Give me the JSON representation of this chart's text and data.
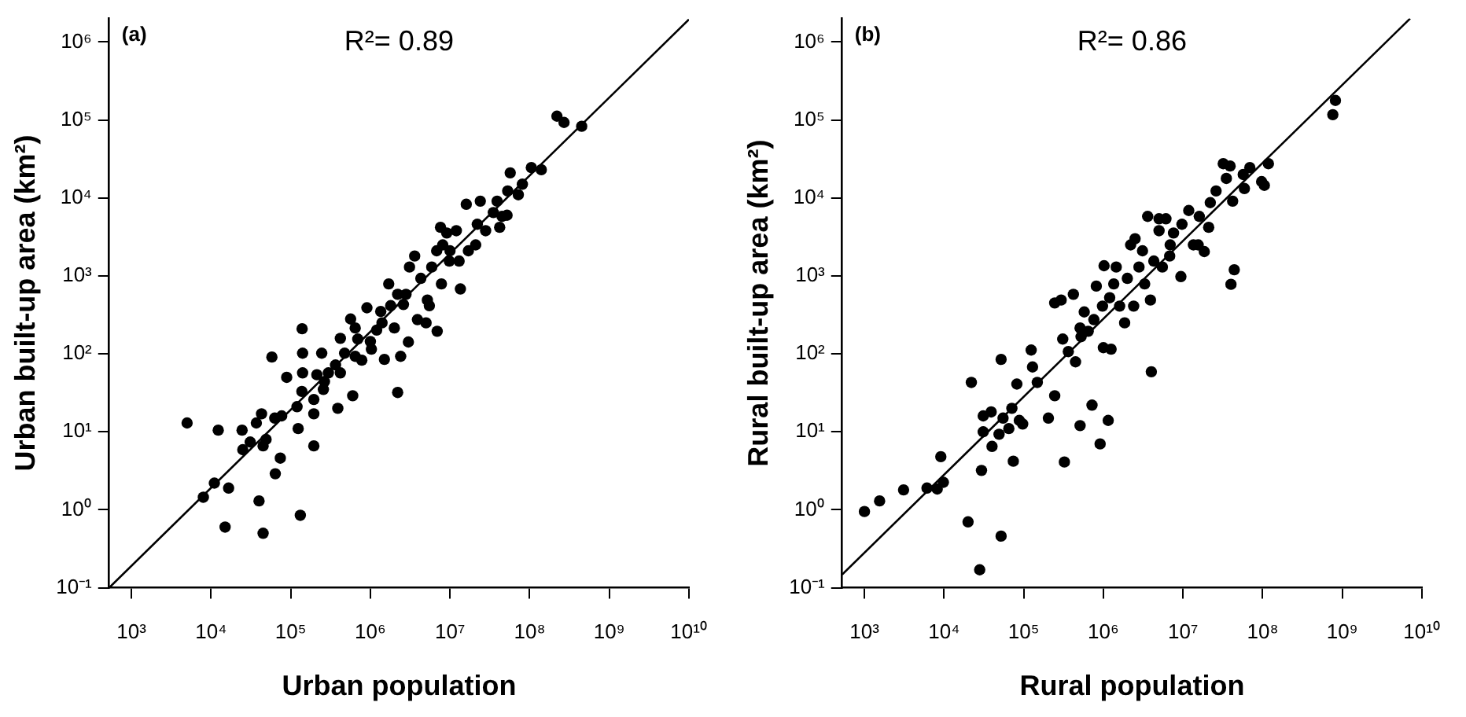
{
  "chart_data": [
    {
      "type": "scatter",
      "annotations": [
        "(a)",
        "R²= 0.89"
      ],
      "xlabel": "Urban population",
      "ylabel": "Urban built-up area (km²)",
      "log": "xy",
      "grid": false,
      "legend": false,
      "marker": "circle",
      "xlim": [
        525,
        10000000000
      ],
      "ylim": [
        0.1,
        2000000
      ],
      "xticks": [
        {
          "value": 1000,
          "label": "10³"
        },
        {
          "value": 10000,
          "label": "10⁴"
        },
        {
          "value": 100000,
          "label": "10⁵"
        },
        {
          "value": 1000000,
          "label": "10⁶"
        },
        {
          "value": 10000000,
          "label": "10⁷"
        },
        {
          "value": 100000000,
          "label": "10⁸"
        },
        {
          "value": 1000000000,
          "label": "10⁹"
        },
        {
          "value": 10000000000,
          "label": "10¹⁰"
        }
      ],
      "yticks": [
        {
          "value": 0.1,
          "label": "10⁻¹"
        },
        {
          "value": 1,
          "label": "10⁰"
        },
        {
          "value": 10,
          "label": "10¹"
        },
        {
          "value": 100,
          "label": "10²"
        },
        {
          "value": 1000,
          "label": "10³"
        },
        {
          "value": 10000,
          "label": "10⁴"
        },
        {
          "value": 100000,
          "label": "10⁵"
        },
        {
          "value": 1000000,
          "label": "10⁶"
        }
      ],
      "series": [
        {
          "type": "scatter",
          "color": "#000000",
          "x": [
            5000,
            8000,
            11000,
            12300,
            15000,
            16600,
            24500,
            25000,
            31000,
            37000,
            40000,
            43000,
            45000,
            45000,
            49000,
            58000,
            63000,
            64000,
            74000,
            77000,
            89000,
            120000,
            124000,
            132000,
            139000,
            141000,
            141000,
            138000,
            195000,
            195000,
            195000,
            213000,
            245000,
            257000,
            265000,
            297000,
            390000,
            365000,
            420000,
            475000,
            420000,
            565000,
            600000,
            645000,
            695000,
            905000,
            1000000,
            1200000,
            1030000,
            1400000,
            1500000,
            1700000,
            2000000,
            2200000,
            2400000,
            2600000,
            3000000,
            3100000,
            2800000,
            3900000,
            4300000,
            5000000,
            5200000,
            6900000,
            6800000,
            7600000,
            7800000,
            9800000,
            9100000,
            12000000,
            13000000,
            13500000,
            16000000,
            17000000,
            22000000,
            24000000,
            28000000,
            35000000,
            39000000,
            42000000,
            45000000,
            52000000,
            57000000,
            53000000,
            72000000,
            81000000,
            105000000,
            140000000,
            220000000,
            270000000,
            450000000,
            1800000,
            2200000,
            3600000,
            5900000,
            8100000,
            10000000,
            780000,
            645000,
            1350000,
            5500000,
            21000000
          ],
          "values": [
            13,
            1.45,
            2.2,
            10.5,
            0.6,
            1.9,
            10.5,
            5.9,
            7.4,
            13,
            1.3,
            17,
            0.5,
            6.6,
            8,
            91,
            15,
            2.9,
            4.6,
            16,
            50,
            21,
            11,
            0.85,
            210,
            102,
            57,
            33,
            17,
            6.6,
            26,
            54,
            102,
            35,
            44,
            57,
            20,
            72,
            158,
            102,
            57,
            280,
            29,
            93,
            155,
            390,
            144,
            202,
            115,
            250,
            85,
            790,
            215,
            32,
            93,
            430,
            142,
            1300,
            580,
            275,
            930,
            250,
            490,
            195,
            2100,
            4200,
            790,
            1550,
            3550,
            3800,
            1550,
            680,
            8300,
            2100,
            4600,
            9100,
            3800,
            6500,
            9100,
            4200,
            5800,
            6000,
            21000,
            12300,
            11000,
            15000,
            24500,
            23000,
            112000,
            93000,
            83000,
            415,
            580,
            1800,
            1300,
            2500,
            2100,
            83,
            215,
            350,
            415,
            2500
          ]
        },
        {
          "type": "line",
          "color": "#000000",
          "marker": "none",
          "line_style": "solid",
          "x": [
            525,
            10000000000
          ],
          "values": [
            0.1,
            1950000
          ]
        }
      ]
    },
    {
      "type": "scatter",
      "annotations": [
        "(b)",
        "R²= 0.86"
      ],
      "xlabel": "Rural population",
      "ylabel": "Rural built-up area (km²)",
      "log": "xy",
      "grid": false,
      "legend": false,
      "marker": "circle",
      "xlim": [
        525,
        10000000000
      ],
      "ylim": [
        0.1,
        2000000
      ],
      "xticks": [
        {
          "value": 1000,
          "label": "10³"
        },
        {
          "value": 10000,
          "label": "10⁴"
        },
        {
          "value": 100000,
          "label": "10⁵"
        },
        {
          "value": 1000000,
          "label": "10⁶"
        },
        {
          "value": 10000000,
          "label": "10⁷"
        },
        {
          "value": 100000000,
          "label": "10⁸"
        },
        {
          "value": 1000000000,
          "label": "10⁹"
        },
        {
          "value": 10000000000,
          "label": "10¹⁰"
        }
      ],
      "yticks": [
        {
          "value": 0.1,
          "label": "10⁻¹"
        },
        {
          "value": 1,
          "label": "10⁰"
        },
        {
          "value": 10,
          "label": "10¹"
        },
        {
          "value": 100,
          "label": "10²"
        },
        {
          "value": 1000,
          "label": "10³"
        },
        {
          "value": 10000,
          "label": "10⁴"
        },
        {
          "value": 100000,
          "label": "10⁵"
        },
        {
          "value": 1000000,
          "label": "10⁶"
        }
      ],
      "series": [
        {
          "type": "scatter",
          "color": "#000000",
          "x": [
            1000,
            1550,
            3100,
            6100,
            8200,
            9100,
            9800,
            20000,
            22000,
            28000,
            29500,
            31000,
            31000,
            39000,
            40000,
            49000,
            52000,
            52000,
            55000,
            65000,
            71000,
            74000,
            82000,
            88000,
            97000,
            124000,
            129000,
            148000,
            204000,
            245000,
            245000,
            295000,
            309000,
            324000,
            363000,
            420000,
            447000,
            510000,
            525000,
            575000,
            645000,
            720000,
            760000,
            815000,
            910000,
            975000,
            1020000,
            1000000,
            1150000,
            1250000,
            1200000,
            1450000,
            1600000,
            1850000,
            2000000,
            2200000,
            2500000,
            2400000,
            2800000,
            3100000,
            3600000,
            3900000,
            4000000,
            4300000,
            5000000,
            5500000,
            6100000,
            6800000,
            7600000,
            9400000,
            9700000,
            11800000,
            13500000,
            15500000,
            18500000,
            21000000,
            22000000,
            26000000,
            32000000,
            35000000,
            39000000,
            40000000,
            44000000,
            42000000,
            57000000,
            59000000,
            69000000,
            97000000,
            105000000,
            118000000,
            760000000,
            820000000,
            5000000,
            1350000,
            6900000,
            16000000,
            3300000,
            510000
          ],
          "values": [
            0.95,
            1.3,
            1.8,
            1.9,
            1.85,
            4.8,
            2.25,
            0.7,
            43,
            0.17,
            3.2,
            16,
            10,
            18,
            6.5,
            9.3,
            85,
            0.46,
            15,
            11,
            20,
            4.2,
            41,
            14,
            12.6,
            112,
            68,
            43,
            15,
            29,
            450,
            490,
            155,
            4.1,
            107,
            580,
            79,
            12,
            166,
            345,
            195,
            22,
            275,
            740,
            7,
            410,
            1350,
            120,
            14,
            115,
            525,
            1300,
            410,
            250,
            930,
            2500,
            3000,
            410,
            1300,
            2100,
            5800,
            490,
            59,
            1550,
            3800,
            1300,
            5400,
            1800,
            3550,
            980,
            4600,
            6900,
            2500,
            2500,
            2050,
            4200,
            8700,
            12300,
            27500,
            17800,
            25700,
            780,
            1200,
            9100,
            20000,
            13200,
            24500,
            16200,
            14500,
            27500,
            117000,
            178000,
            5400,
            790,
            2500,
            5800,
            790,
            215
          ]
        },
        {
          "type": "line",
          "color": "#000000",
          "marker": "none",
          "line_style": "solid",
          "x": [
            525,
            7100000000
          ],
          "values": [
            0.148,
            2000000
          ]
        }
      ]
    }
  ]
}
